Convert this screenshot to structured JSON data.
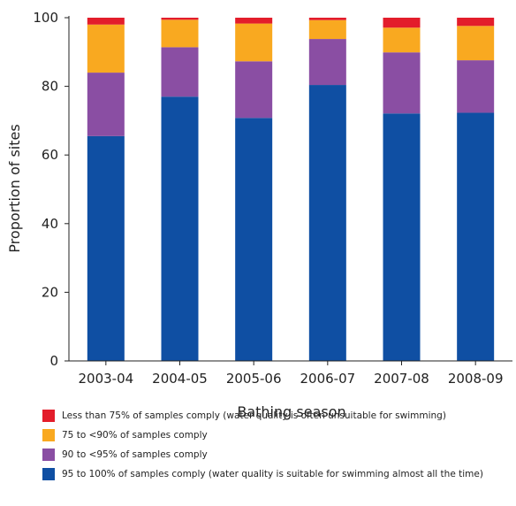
{
  "chart_data": {
    "type": "bar",
    "stacked": true,
    "title": "",
    "xlabel": "Bathing season",
    "ylabel": "Proportion of sites",
    "ylim": [
      0,
      100
    ],
    "yticks": [
      0,
      20,
      40,
      60,
      80,
      100
    ],
    "categories": [
      "2003-04",
      "2004-05",
      "2005-06",
      "2006-07",
      "2007-08",
      "2008-09"
    ],
    "series": [
      {
        "name": "95 to 100% of samples comply (water quality is suitable for swimming almost all the time)",
        "color": "#0f4fa3",
        "values": [
          65.5,
          77.0,
          70.8,
          80.4,
          72.1,
          72.3
        ]
      },
      {
        "name": "90 to <95% of samples comply",
        "color": "#8a4ea3",
        "values": [
          18.5,
          14.4,
          16.5,
          13.4,
          17.8,
          15.3
        ]
      },
      {
        "name": "75 to <90% of samples comply",
        "color": "#f9a920",
        "values": [
          14.0,
          8.0,
          11.0,
          5.5,
          7.2,
          10.0
        ]
      },
      {
        "name": "Less than 75% of samples comply (water quality is often unsuitable for swimming)",
        "color": "#e31d2b",
        "values": [
          2.0,
          0.6,
          1.7,
          0.7,
          2.9,
          2.4
        ]
      }
    ],
    "grid": false,
    "legend_position": "bottom"
  }
}
